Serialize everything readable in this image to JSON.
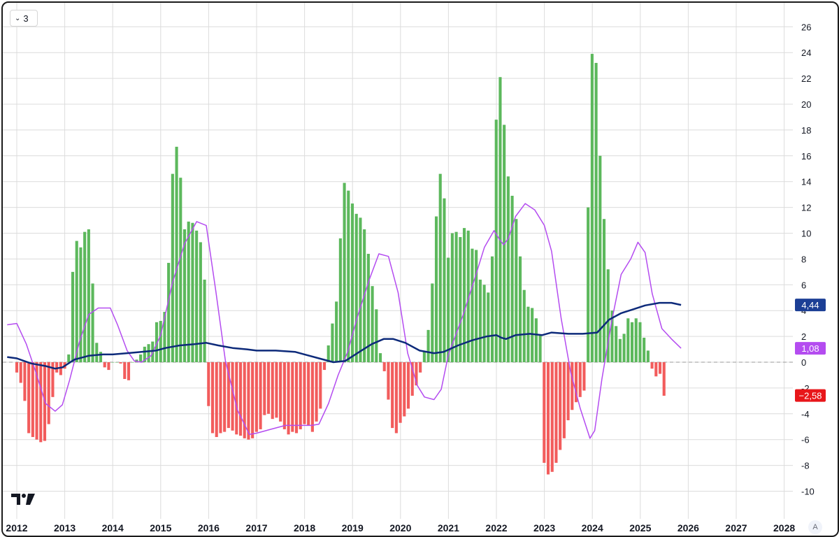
{
  "legend": {
    "count_label": "3",
    "chevron_icon": "chevron-down-icon"
  },
  "watermark": {
    "icon": "tradingview-logo-icon"
  },
  "auto_scale": {
    "label": "A"
  },
  "colors": {
    "positive_bar": "#5cb85c",
    "negative_bar": "#f25c5c",
    "signal_line": "#b44cf0",
    "average_line": "#0d2a7a",
    "grid": "#dcdcdc",
    "zero_line": "#9a9a9a",
    "label_blue": "#1c3f95",
    "label_purple": "#b44cf0",
    "label_red": "#e8161a"
  },
  "chart_data": {
    "type": "bar",
    "x_ticks": [
      "2012",
      "2013",
      "2014",
      "2015",
      "2016",
      "2017",
      "2018",
      "2019",
      "2020",
      "2021",
      "2022",
      "2023",
      "2024",
      "2025",
      "2026",
      "2027",
      "2028"
    ],
    "y_ticks": [
      "26",
      "24",
      "22",
      "20",
      "18",
      "16",
      "14",
      "12",
      "10",
      "8",
      "6",
      "4",
      "2",
      "0",
      "-2",
      "-4",
      "-6",
      "-8",
      "-10"
    ],
    "ylim": [
      -11,
      27
    ],
    "xlim": [
      2011.8,
      2028.2
    ],
    "grid": true,
    "legend": "none",
    "histogram": {
      "start": 2012.0,
      "step": 0.0833,
      "values": [
        -0.8,
        -1.6,
        -3.0,
        -5.5,
        -5.8,
        -6.0,
        -6.2,
        -6.1,
        -4.8,
        -2.7,
        -0.8,
        -1.0,
        -0.5,
        0.6,
        7.0,
        9.4,
        8.9,
        10.1,
        10.3,
        6.1,
        1.5,
        0.8,
        -0.4,
        -0.6,
        0.0,
        0.0,
        -0.1,
        -1.3,
        -1.4,
        0.0,
        0.2,
        0.6,
        1.2,
        1.4,
        1.6,
        3.1,
        3.2,
        3.9,
        7.7,
        14.6,
        16.7,
        14.3,
        10.3,
        10.9,
        10.8,
        10.2,
        9.3,
        6.4,
        -3.4,
        -5.5,
        -5.8,
        -5.5,
        -5.4,
        -5.1,
        -5.3,
        -5.6,
        -5.7,
        -5.9,
        -6.0,
        -5.9,
        -5.4,
        -5.2,
        -4.1,
        -4.0,
        -4.4,
        -4.3,
        -4.6,
        -5.2,
        -5.6,
        -5.4,
        -5.5,
        -5.2,
        -4.8,
        -4.9,
        -5.4,
        -4.6,
        -3.6,
        -0.6,
        1.3,
        3.0,
        4.7,
        9.6,
        13.9,
        13.3,
        12.3,
        11.5,
        11.2,
        10.3,
        8.4,
        5.9,
        4.1,
        0.7,
        -0.7,
        -2.9,
        -5.1,
        -5.5,
        -4.7,
        -4.2,
        -3.6,
        -2.6,
        -1.8,
        -0.8,
        0.8,
        2.5,
        6.1,
        11.3,
        14.6,
        12.7,
        8.1,
        10.0,
        10.1,
        9.7,
        10.4,
        10.2,
        8.8,
        8.7,
        6.4,
        6.0,
        5.4,
        8.2,
        18.8,
        22.1,
        18.4,
        14.4,
        12.9,
        11.1,
        8.2,
        5.6,
        4.3,
        4.2,
        3.4,
        2.1,
        -7.8,
        -8.7,
        -8.5,
        -7.8,
        -6.8,
        -5.9,
        -4.5,
        -3.7,
        -3.1,
        -2.7,
        -2.2,
        12.0,
        23.9,
        23.2,
        16.0,
        11.1,
        7.2,
        4.0,
        2.8,
        1.8,
        2.2,
        3.4,
        3.1,
        3.4,
        3.1,
        1.9,
        0.9,
        -0.5,
        -1.1,
        -0.9,
        -2.6
      ]
    },
    "signal_line": {
      "name": "",
      "points": [
        [
          2011.8,
          2.9
        ],
        [
          2012.0,
          3.0
        ],
        [
          2012.2,
          1.4
        ],
        [
          2012.4,
          -0.8
        ],
        [
          2012.6,
          -3.2
        ],
        [
          2012.8,
          -3.8
        ],
        [
          2012.95,
          -3.3
        ],
        [
          2013.1,
          -1.4
        ],
        [
          2013.3,
          1.5
        ],
        [
          2013.5,
          3.7
        ],
        [
          2013.7,
          4.2
        ],
        [
          2013.95,
          4.2
        ],
        [
          2014.1,
          2.9
        ],
        [
          2014.3,
          0.9
        ],
        [
          2014.45,
          0.1
        ],
        [
          2014.6,
          0.0
        ],
        [
          2014.8,
          0.5
        ],
        [
          2015.0,
          2.1
        ],
        [
          2015.25,
          6.2
        ],
        [
          2015.5,
          9.2
        ],
        [
          2015.75,
          10.9
        ],
        [
          2015.95,
          10.6
        ],
        [
          2016.15,
          5.5
        ],
        [
          2016.35,
          0.1
        ],
        [
          2016.6,
          -3.7
        ],
        [
          2016.85,
          -5.6
        ],
        [
          2017.0,
          -5.5
        ],
        [
          2017.3,
          -5.2
        ],
        [
          2017.6,
          -4.9
        ],
        [
          2017.9,
          -4.9
        ],
        [
          2018.15,
          -4.9
        ],
        [
          2018.3,
          -4.8
        ],
        [
          2018.5,
          -3.2
        ],
        [
          2018.7,
          -1.0
        ],
        [
          2018.9,
          0.8
        ],
        [
          2019.1,
          3.5
        ],
        [
          2019.35,
          6.4
        ],
        [
          2019.55,
          8.4
        ],
        [
          2019.75,
          8.2
        ],
        [
          2019.95,
          5.4
        ],
        [
          2020.15,
          0.7
        ],
        [
          2020.35,
          -1.8
        ],
        [
          2020.5,
          -2.7
        ],
        [
          2020.7,
          -2.9
        ],
        [
          2020.85,
          -2.1
        ],
        [
          2021.0,
          0.6
        ],
        [
          2021.3,
          3.6
        ],
        [
          2021.55,
          6.5
        ],
        [
          2021.75,
          8.9
        ],
        [
          2021.95,
          10.2
        ],
        [
          2022.05,
          9.6
        ],
        [
          2022.15,
          9.1
        ],
        [
          2022.25,
          9.6
        ],
        [
          2022.4,
          11.3
        ],
        [
          2022.6,
          12.3
        ],
        [
          2022.8,
          11.8
        ],
        [
          2023.0,
          10.6
        ],
        [
          2023.15,
          8.6
        ],
        [
          2023.35,
          3.4
        ],
        [
          2023.55,
          -0.8
        ],
        [
          2023.75,
          -3.6
        ],
        [
          2023.95,
          -5.9
        ],
        [
          2024.05,
          -5.3
        ],
        [
          2024.2,
          -1.3
        ],
        [
          2024.4,
          3.1
        ],
        [
          2024.6,
          6.8
        ],
        [
          2024.8,
          8.0
        ],
        [
          2024.95,
          9.3
        ],
        [
          2025.1,
          8.5
        ],
        [
          2025.25,
          5.3
        ],
        [
          2025.45,
          2.6
        ],
        [
          2025.65,
          1.8
        ],
        [
          2025.85,
          1.08
        ]
      ]
    },
    "average_line": {
      "name": "",
      "points": [
        [
          2011.8,
          0.4
        ],
        [
          2012.0,
          0.3
        ],
        [
          2012.3,
          -0.1
        ],
        [
          2012.6,
          -0.3
        ],
        [
          2012.8,
          -0.5
        ],
        [
          2012.95,
          -0.4
        ],
        [
          2013.2,
          0.2
        ],
        [
          2013.5,
          0.5
        ],
        [
          2013.8,
          0.6
        ],
        [
          2014.0,
          0.6
        ],
        [
          2014.3,
          0.7
        ],
        [
          2014.6,
          0.8
        ],
        [
          2014.9,
          0.9
        ],
        [
          2015.1,
          1.1
        ],
        [
          2015.4,
          1.3
        ],
        [
          2015.7,
          1.4
        ],
        [
          2015.95,
          1.5
        ],
        [
          2016.2,
          1.3
        ],
        [
          2016.5,
          1.1
        ],
        [
          2016.8,
          1.0
        ],
        [
          2017.0,
          0.9
        ],
        [
          2017.4,
          0.9
        ],
        [
          2017.8,
          0.8
        ],
        [
          2018.0,
          0.6
        ],
        [
          2018.3,
          0.3
        ],
        [
          2018.6,
          0.0
        ],
        [
          2018.85,
          0.1
        ],
        [
          2019.1,
          0.7
        ],
        [
          2019.4,
          1.4
        ],
        [
          2019.65,
          1.8
        ],
        [
          2019.85,
          1.8
        ],
        [
          2020.1,
          1.5
        ],
        [
          2020.4,
          0.9
        ],
        [
          2020.7,
          0.7
        ],
        [
          2020.9,
          0.8
        ],
        [
          2021.2,
          1.3
        ],
        [
          2021.5,
          1.7
        ],
        [
          2021.8,
          2.0
        ],
        [
          2022.0,
          2.1
        ],
        [
          2022.1,
          1.9
        ],
        [
          2022.2,
          1.8
        ],
        [
          2022.4,
          2.1
        ],
        [
          2022.7,
          2.2
        ],
        [
          2022.95,
          2.1
        ],
        [
          2023.15,
          2.3
        ],
        [
          2023.5,
          2.2
        ],
        [
          2023.8,
          2.2
        ],
        [
          2024.1,
          2.3
        ],
        [
          2024.35,
          3.3
        ],
        [
          2024.6,
          3.8
        ],
        [
          2024.85,
          4.1
        ],
        [
          2025.1,
          4.4
        ],
        [
          2025.4,
          4.6
        ],
        [
          2025.65,
          4.6
        ],
        [
          2025.85,
          4.44
        ]
      ]
    },
    "price_labels": [
      {
        "value": 4.44,
        "text": "4,44",
        "color": "#1c3f95"
      },
      {
        "value": 1.08,
        "text": "1,08",
        "color": "#b44cf0"
      },
      {
        "value": -2.58,
        "text": "−2,58",
        "color": "#e8161a"
      }
    ]
  }
}
